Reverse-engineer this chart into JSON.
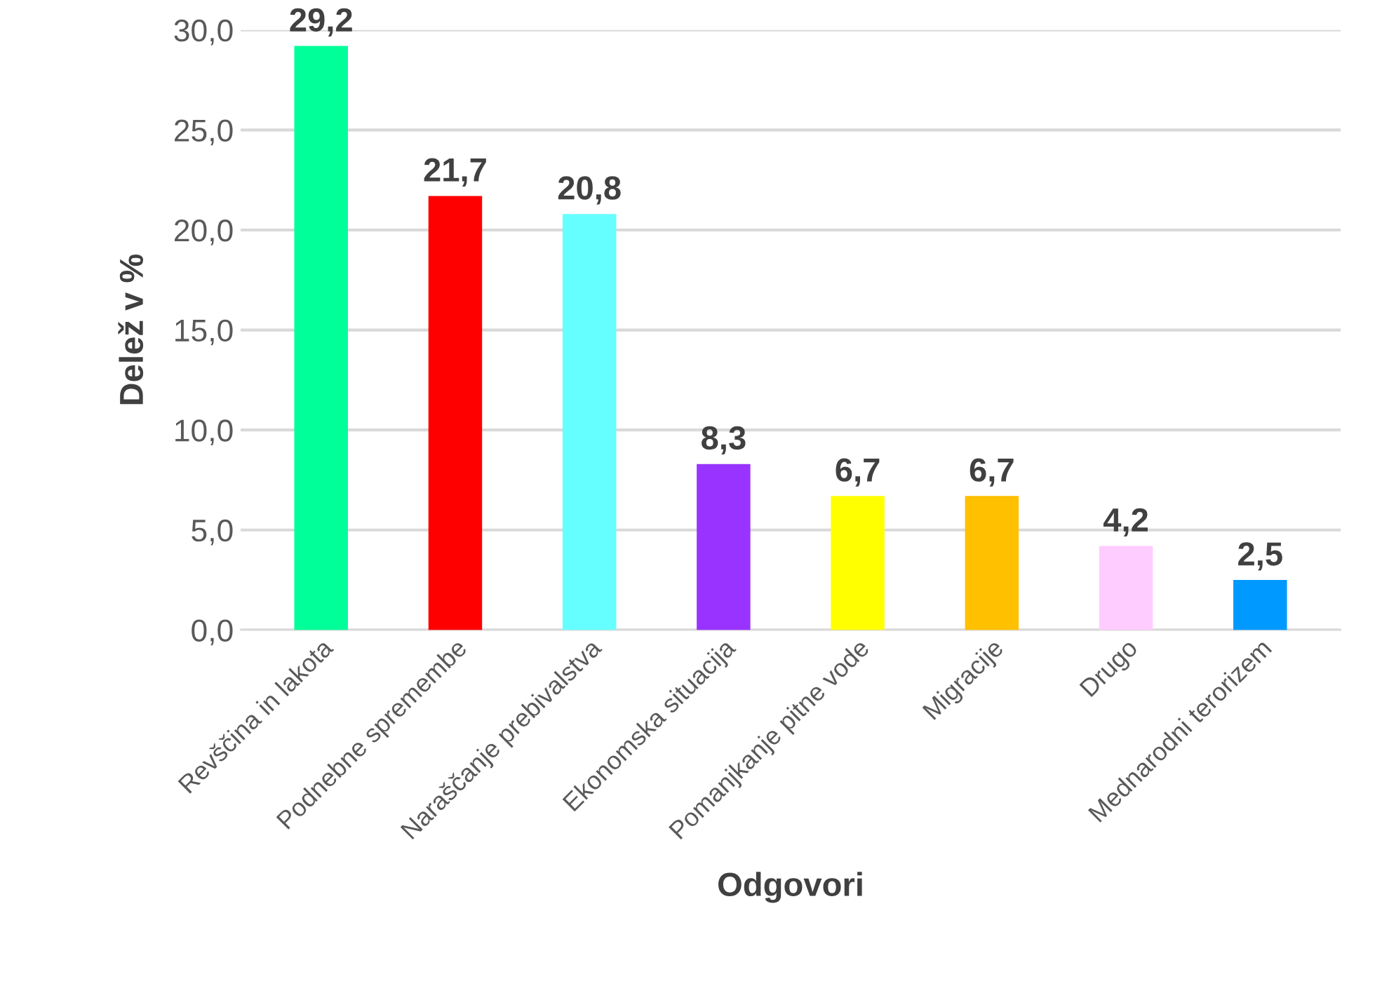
{
  "chart_data": {
    "type": "bar",
    "xlabel": "Odgovori",
    "ylabel": "Delež v %",
    "categories": [
      "Revščina in lakota",
      "Podnebne spremembe",
      "Naraščanje prebivalstva",
      "Ekonomska situacija",
      "Pomanjkanje pitne vode",
      "Migracije",
      "Drugo",
      "Mednarodni terorizem"
    ],
    "values": [
      29.2,
      21.7,
      20.8,
      8.3,
      6.7,
      6.7,
      4.2,
      2.5
    ],
    "value_labels": [
      "29,2",
      "21,7",
      "20,8",
      "8,3",
      "6,7",
      "6,7",
      "4,2",
      "2,5"
    ],
    "colors": [
      "#00ff99",
      "#ff0000",
      "#66ffff",
      "#9933ff",
      "#ffff00",
      "#ffc000",
      "#ffccff",
      "#0099ff"
    ],
    "ylim": [
      0,
      30
    ],
    "yticks": [
      {
        "value": 0,
        "label": "0,0"
      },
      {
        "value": 5,
        "label": "5,0"
      },
      {
        "value": 10,
        "label": "10,0"
      },
      {
        "value": 15,
        "label": "15,0"
      },
      {
        "value": 20,
        "label": "20,0"
      },
      {
        "value": 25,
        "label": "25,0"
      },
      {
        "value": 30,
        "label": "30,0"
      }
    ],
    "grid": "y"
  }
}
